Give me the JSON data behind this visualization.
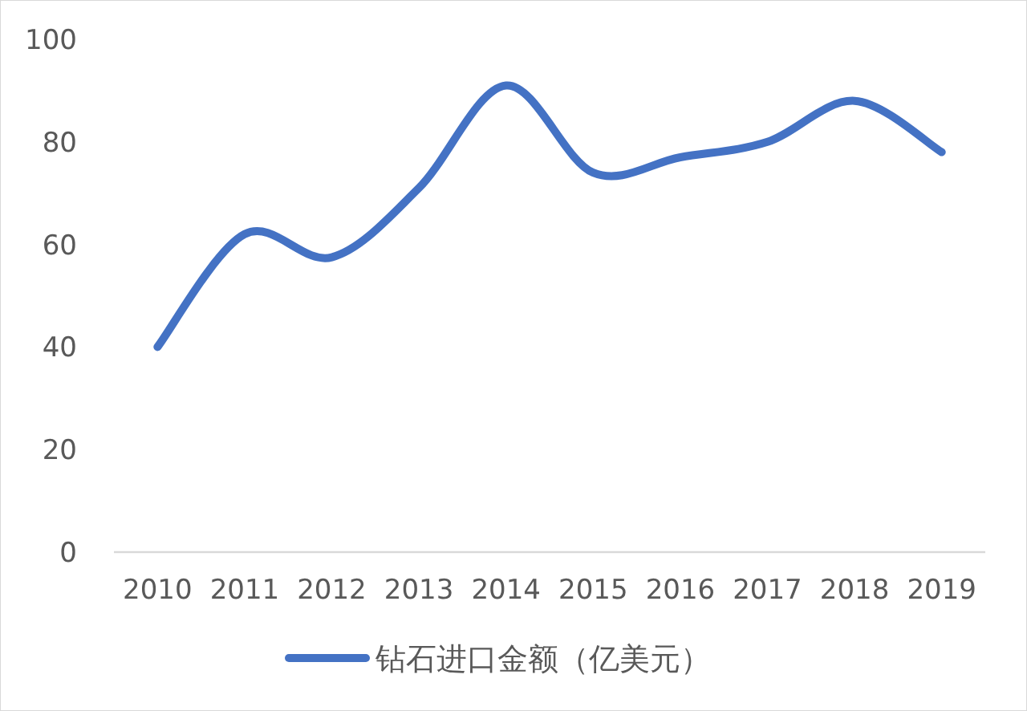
{
  "chart_data": {
    "type": "line",
    "categories": [
      "2010",
      "2011",
      "2012",
      "2013",
      "2014",
      "2015",
      "2016",
      "2017",
      "2018",
      "2019"
    ],
    "series": [
      {
        "name": "钻石进口金额（亿美元）",
        "color": "#4472c4",
        "values": [
          40,
          62,
          57.5,
          71,
          91,
          74,
          77,
          80,
          88,
          78
        ]
      }
    ],
    "ylim": [
      0,
      100
    ],
    "yticks": [
      0,
      20,
      40,
      60,
      80,
      100
    ],
    "grid": false,
    "legend": "bottom",
    "marker": "none",
    "line_style": "solid"
  }
}
